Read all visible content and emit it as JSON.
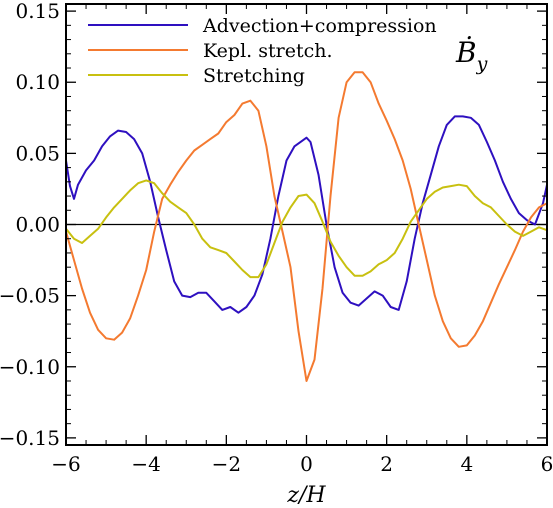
{
  "chart_data": {
    "type": "line",
    "title": "",
    "xlabel": "z/H",
    "ylabel": "",
    "xlim": [
      -6,
      6
    ],
    "ylim": [
      -0.155,
      0.155
    ],
    "xticks": [
      -6,
      -4,
      -2,
      0,
      2,
      4,
      6
    ],
    "xtick_labels": [
      "−6",
      "−4",
      "−2",
      "0",
      "2",
      "4",
      "6"
    ],
    "yticks": [
      -0.15,
      -0.1,
      -0.05,
      0.0,
      0.05,
      0.1,
      0.15
    ],
    "ytick_labels": [
      "−0.15",
      "−0.10",
      "−0.05",
      "0.00",
      "0.05",
      "0.10",
      "0.15"
    ],
    "grid": false,
    "legend_position": "top-left",
    "annotation": {
      "main": "Ḃ",
      "sub": "y"
    },
    "zero_line": true,
    "series": [
      {
        "name": "Advection+compression",
        "color": "#2e10c0",
        "x": [
          -6.0,
          -5.9,
          -5.8,
          -5.7,
          -5.5,
          -5.3,
          -5.1,
          -4.9,
          -4.7,
          -4.5,
          -4.3,
          -4.1,
          -3.9,
          -3.7,
          -3.5,
          -3.3,
          -3.1,
          -2.9,
          -2.7,
          -2.5,
          -2.3,
          -2.1,
          -1.9,
          -1.7,
          -1.5,
          -1.3,
          -1.1,
          -0.9,
          -0.7,
          -0.5,
          -0.3,
          -0.1,
          0.0,
          0.1,
          0.3,
          0.5,
          0.7,
          0.9,
          1.1,
          1.3,
          1.5,
          1.7,
          1.9,
          2.1,
          2.3,
          2.5,
          2.7,
          2.9,
          3.1,
          3.3,
          3.5,
          3.7,
          3.9,
          4.1,
          4.3,
          4.5,
          4.7,
          4.9,
          5.1,
          5.3,
          5.5,
          5.7,
          5.9,
          6.0
        ],
        "y": [
          0.045,
          0.027,
          0.018,
          0.028,
          0.038,
          0.045,
          0.055,
          0.062,
          0.066,
          0.065,
          0.06,
          0.05,
          0.03,
          0.005,
          -0.018,
          -0.04,
          -0.05,
          -0.051,
          -0.048,
          -0.048,
          -0.054,
          -0.06,
          -0.058,
          -0.062,
          -0.058,
          -0.05,
          -0.035,
          -0.01,
          0.02,
          0.045,
          0.055,
          0.059,
          0.061,
          0.058,
          0.035,
          0.0,
          -0.03,
          -0.048,
          -0.055,
          -0.057,
          -0.052,
          -0.047,
          -0.05,
          -0.058,
          -0.06,
          -0.04,
          -0.01,
          0.015,
          0.035,
          0.055,
          0.07,
          0.076,
          0.076,
          0.075,
          0.07,
          0.058,
          0.045,
          0.03,
          0.018,
          0.008,
          0.003,
          0.0,
          0.015,
          0.028
        ]
      },
      {
        "name": "Kepl. stretch.",
        "color": "#f47a30",
        "x": [
          -6.0,
          -5.8,
          -5.6,
          -5.4,
          -5.2,
          -5.0,
          -4.8,
          -4.6,
          -4.4,
          -4.2,
          -4.0,
          -3.8,
          -3.6,
          -3.4,
          -3.2,
          -3.0,
          -2.8,
          -2.6,
          -2.4,
          -2.2,
          -2.0,
          -1.8,
          -1.6,
          -1.4,
          -1.2,
          -1.0,
          -0.8,
          -0.6,
          -0.4,
          -0.2,
          0.0,
          0.2,
          0.4,
          0.6,
          0.8,
          1.0,
          1.2,
          1.4,
          1.6,
          1.8,
          2.0,
          2.2,
          2.4,
          2.6,
          2.8,
          3.0,
          3.2,
          3.4,
          3.6,
          3.8,
          4.0,
          4.2,
          4.4,
          4.6,
          4.8,
          5.0,
          5.2,
          5.4,
          5.6,
          5.8,
          6.0
        ],
        "y": [
          -0.005,
          -0.025,
          -0.045,
          -0.062,
          -0.074,
          -0.08,
          -0.081,
          -0.076,
          -0.066,
          -0.05,
          -0.032,
          -0.005,
          0.018,
          0.028,
          0.037,
          0.045,
          0.052,
          0.056,
          0.06,
          0.064,
          0.072,
          0.077,
          0.085,
          0.087,
          0.08,
          0.055,
          0.02,
          -0.005,
          -0.03,
          -0.075,
          -0.11,
          -0.095,
          -0.045,
          0.02,
          0.075,
          0.1,
          0.107,
          0.107,
          0.1,
          0.085,
          0.073,
          0.06,
          0.045,
          0.025,
          0.0,
          -0.025,
          -0.05,
          -0.068,
          -0.08,
          -0.086,
          -0.085,
          -0.078,
          -0.068,
          -0.055,
          -0.042,
          -0.03,
          -0.018,
          -0.005,
          0.005,
          0.012,
          0.015
        ]
      },
      {
        "name": "Stretching",
        "color": "#c8c010",
        "x": [
          -6.0,
          -5.8,
          -5.6,
          -5.4,
          -5.2,
          -5.0,
          -4.8,
          -4.6,
          -4.4,
          -4.2,
          -4.0,
          -3.8,
          -3.6,
          -3.4,
          -3.2,
          -3.0,
          -2.8,
          -2.6,
          -2.4,
          -2.2,
          -2.0,
          -1.8,
          -1.6,
          -1.4,
          -1.2,
          -1.0,
          -0.8,
          -0.6,
          -0.4,
          -0.2,
          0.0,
          0.2,
          0.4,
          0.6,
          0.8,
          1.0,
          1.2,
          1.4,
          1.6,
          1.8,
          2.0,
          2.2,
          2.4,
          2.6,
          2.8,
          3.0,
          3.2,
          3.4,
          3.6,
          3.8,
          4.0,
          4.2,
          4.4,
          4.6,
          4.8,
          5.0,
          5.2,
          5.4,
          5.6,
          5.8,
          6.0
        ],
        "y": [
          -0.003,
          -0.01,
          -0.013,
          -0.008,
          -0.003,
          0.005,
          0.012,
          0.018,
          0.024,
          0.029,
          0.031,
          0.029,
          0.022,
          0.016,
          0.012,
          0.008,
          0.0,
          -0.01,
          -0.016,
          -0.018,
          -0.02,
          -0.026,
          -0.032,
          -0.037,
          -0.037,
          -0.028,
          -0.013,
          0.002,
          0.012,
          0.02,
          0.021,
          0.015,
          0.002,
          -0.012,
          -0.022,
          -0.03,
          -0.036,
          -0.036,
          -0.033,
          -0.028,
          -0.025,
          -0.02,
          -0.01,
          0.002,
          0.01,
          0.018,
          0.023,
          0.026,
          0.027,
          0.028,
          0.027,
          0.02,
          0.015,
          0.012,
          0.006,
          0.0,
          -0.005,
          -0.008,
          -0.005,
          -0.002,
          -0.004
        ]
      }
    ]
  }
}
